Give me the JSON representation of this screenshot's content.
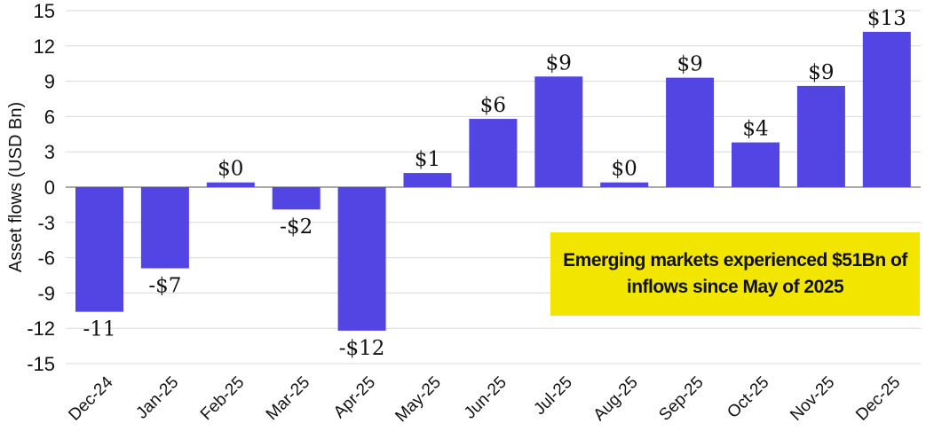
{
  "chart_data": {
    "type": "bar",
    "title": "",
    "xlabel": "",
    "ylabel": "Asset flows (USD Bn)",
    "ylim": [
      -15,
      15
    ],
    "yticks": [
      15,
      12,
      9,
      6,
      3,
      0,
      -3,
      -6,
      -9,
      -12,
      -15
    ],
    "grid": true,
    "categories": [
      "Dec-24",
      "Jan-25",
      "Feb-25",
      "Mar-25",
      "Apr-25",
      "May-25",
      "Jun-25",
      "Jul-25",
      "Aug-25",
      "Sep-25",
      "Oct-25",
      "Nov-25",
      "Dec-25"
    ],
    "values": [
      -10.6,
      -6.9,
      0.4,
      -1.9,
      -12.2,
      1.2,
      5.8,
      9.4,
      0.4,
      9.3,
      3.8,
      8.6,
      13.2
    ],
    "data_labels": [
      "-11",
      "-$7",
      "$0",
      "-$2",
      "-$12",
      "$1",
      "$6",
      "$9",
      "$0",
      "$9",
      "$4",
      "$9",
      "$13"
    ],
    "bar_color": "#5245E3",
    "annotation": {
      "text": "Emerging markets experienced $51Bn of inflows since May of 2025",
      "background": "#F2E600"
    }
  }
}
